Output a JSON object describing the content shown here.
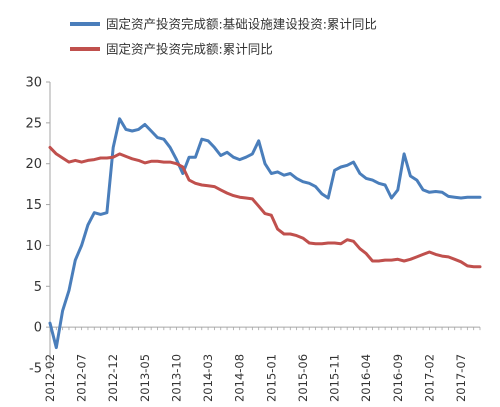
{
  "chart_data": {
    "type": "line",
    "title": "",
    "xlabel": "",
    "ylabel": "",
    "ylim": [
      -5,
      30
    ],
    "yticks": [
      -5,
      0,
      5,
      10,
      15,
      20,
      25,
      30
    ],
    "grid": false,
    "legend_position": "top",
    "x_tick_labels": [
      "2012-02",
      "2012-07",
      "2012-12",
      "2013-05",
      "2013-10",
      "2014-03",
      "2014-08",
      "2015-01",
      "2015-06",
      "2015-11",
      "2016-04",
      "2016-09",
      "2017-02",
      "2017-07"
    ],
    "x": [
      "2012-02",
      "2012-03",
      "2012-04",
      "2012-05",
      "2012-06",
      "2012-07",
      "2012-08",
      "2012-09",
      "2012-10",
      "2012-11",
      "2012-12",
      "2013-01",
      "2013-02",
      "2013-03",
      "2013-04",
      "2013-05",
      "2013-06",
      "2013-07",
      "2013-08",
      "2013-09",
      "2013-10",
      "2013-11",
      "2013-12",
      "2014-01",
      "2014-02",
      "2014-03",
      "2014-04",
      "2014-05",
      "2014-06",
      "2014-07",
      "2014-08",
      "2014-09",
      "2014-10",
      "2014-11",
      "2014-12",
      "2015-01",
      "2015-02",
      "2015-03",
      "2015-04",
      "2015-05",
      "2015-06",
      "2015-07",
      "2015-08",
      "2015-09",
      "2015-10",
      "2015-11",
      "2015-12",
      "2016-01",
      "2016-02",
      "2016-03",
      "2016-04",
      "2016-05",
      "2016-06",
      "2016-07",
      "2016-08",
      "2016-09",
      "2016-10",
      "2016-11",
      "2016-12",
      "2017-01",
      "2017-02",
      "2017-03",
      "2017-04",
      "2017-05",
      "2017-06",
      "2017-07",
      "2017-08",
      "2017-09",
      "2017-10"
    ],
    "series": [
      {
        "name": "固定资产投资完成额:基础设施建设投资:累计同比",
        "color": "#4a7ebb",
        "values": [
          0.5,
          -2.5,
          2.0,
          4.5,
          8.2,
          10.0,
          12.5,
          14.0,
          13.8,
          14.0,
          22.0,
          25.5,
          24.2,
          24.0,
          24.2,
          24.8,
          24.0,
          23.2,
          23.0,
          22.0,
          20.5,
          18.8,
          20.8,
          20.8,
          23.0,
          22.8,
          22.0,
          21.0,
          21.4,
          20.8,
          20.5,
          20.8,
          21.2,
          22.8,
          20.0,
          18.8,
          19.0,
          18.6,
          18.8,
          18.2,
          17.8,
          17.6,
          17.2,
          16.3,
          15.8,
          19.2,
          19.6,
          19.8,
          20.2,
          18.8,
          18.2,
          18.0,
          17.6,
          17.4,
          15.8,
          16.8,
          21.2,
          18.5,
          18.0,
          16.8,
          16.5,
          16.6,
          16.5,
          16.0,
          15.9,
          15.8,
          15.9,
          15.9,
          15.9
        ]
      },
      {
        "name": "固定资产投资完成额:累计同比",
        "color": "#c0504d",
        "values": [
          22.0,
          21.2,
          20.7,
          20.2,
          20.4,
          20.2,
          20.4,
          20.5,
          20.7,
          20.7,
          20.8,
          21.2,
          20.9,
          20.6,
          20.4,
          20.1,
          20.3,
          20.3,
          20.2,
          20.2,
          20.0,
          19.6,
          18.0,
          17.6,
          17.4,
          17.3,
          17.2,
          16.8,
          16.4,
          16.1,
          15.9,
          15.8,
          15.7,
          14.8,
          13.9,
          13.7,
          12.0,
          11.4,
          11.4,
          11.2,
          10.9,
          10.3,
          10.2,
          10.2,
          10.3,
          10.3,
          10.2,
          10.7,
          10.5,
          9.6,
          9.0,
          8.1,
          8.1,
          8.2,
          8.2,
          8.3,
          8.1,
          8.3,
          8.6,
          8.9,
          9.2,
          8.9,
          8.7,
          8.6,
          8.3,
          8.0,
          7.5,
          7.4,
          7.4
        ]
      }
    ]
  }
}
